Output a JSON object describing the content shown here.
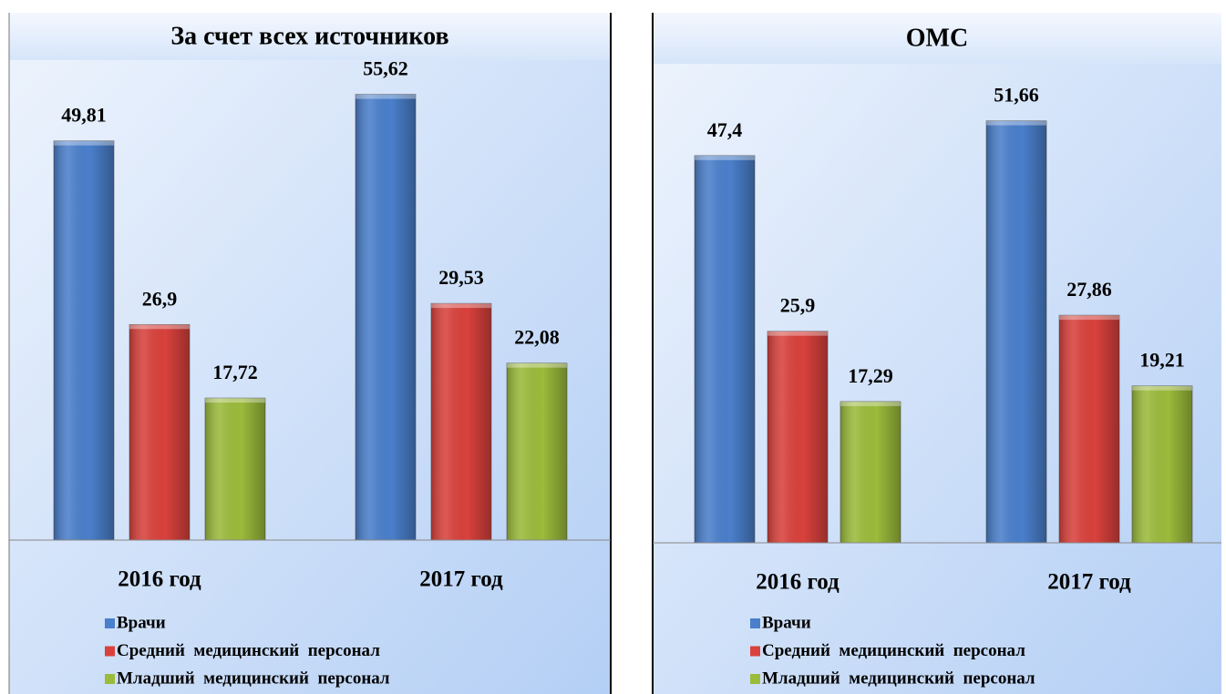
{
  "chart_data": [
    {
      "type": "bar",
      "title": "За счет всех источников",
      "categories": [
        "2016 год",
        "2017 год"
      ],
      "series": [
        {
          "name": "Врачи",
          "color": "#4a7fcb",
          "values": [
            49.81,
            55.62
          ],
          "value_labels": [
            "49,81",
            "55,62"
          ]
        },
        {
          "name": "Средний  медицинский  персонал",
          "color": "#d9413c",
          "values": [
            26.9,
            29.53
          ],
          "value_labels": [
            "26,9",
            "29,53"
          ]
        },
        {
          "name": "Младший  медицинский  персонал",
          "color": "#9bbb3b",
          "values": [
            17.72,
            22.08
          ],
          "value_labels": [
            "17,72",
            "22,08"
          ]
        }
      ]
    },
    {
      "type": "bar",
      "title": "ОМС",
      "categories": [
        "2016 год",
        "2017 год"
      ],
      "series": [
        {
          "name": "Врачи",
          "color": "#4a7fcb",
          "values": [
            47.4,
            51.66
          ],
          "value_labels": [
            "47,4",
            "51,66"
          ]
        },
        {
          "name": "Средний  медицинский  персонал",
          "color": "#d9413c",
          "values": [
            25.9,
            27.86
          ],
          "value_labels": [
            "25,9",
            "27,86"
          ]
        },
        {
          "name": "Младший  медицинский  персонал",
          "color": "#9bbb3b",
          "values": [
            17.29,
            19.21
          ],
          "value_labels": [
            "17,29",
            "19,21"
          ]
        }
      ]
    }
  ]
}
